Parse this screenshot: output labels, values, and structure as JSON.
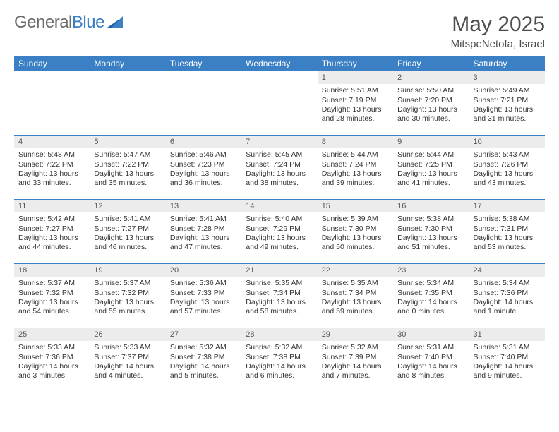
{
  "logo": {
    "part1": "General",
    "part2": "Blue"
  },
  "title": {
    "month": "May 2025",
    "location": "MitspeNetofa, Israel"
  },
  "colors": {
    "header_bg": "#3b7fc4",
    "header_text": "#ffffff",
    "daynum_bg": "#ececec",
    "row_border": "#3b7fc4",
    "body_text": "#333333"
  },
  "dow": [
    "Sunday",
    "Monday",
    "Tuesday",
    "Wednesday",
    "Thursday",
    "Friday",
    "Saturday"
  ],
  "weeks": [
    [
      {
        "n": "",
        "sr": "",
        "ss": "",
        "dl": ""
      },
      {
        "n": "",
        "sr": "",
        "ss": "",
        "dl": ""
      },
      {
        "n": "",
        "sr": "",
        "ss": "",
        "dl": ""
      },
      {
        "n": "",
        "sr": "",
        "ss": "",
        "dl": ""
      },
      {
        "n": "1",
        "sr": "Sunrise: 5:51 AM",
        "ss": "Sunset: 7:19 PM",
        "dl": "Daylight: 13 hours and 28 minutes."
      },
      {
        "n": "2",
        "sr": "Sunrise: 5:50 AM",
        "ss": "Sunset: 7:20 PM",
        "dl": "Daylight: 13 hours and 30 minutes."
      },
      {
        "n": "3",
        "sr": "Sunrise: 5:49 AM",
        "ss": "Sunset: 7:21 PM",
        "dl": "Daylight: 13 hours and 31 minutes."
      }
    ],
    [
      {
        "n": "4",
        "sr": "Sunrise: 5:48 AM",
        "ss": "Sunset: 7:22 PM",
        "dl": "Daylight: 13 hours and 33 minutes."
      },
      {
        "n": "5",
        "sr": "Sunrise: 5:47 AM",
        "ss": "Sunset: 7:22 PM",
        "dl": "Daylight: 13 hours and 35 minutes."
      },
      {
        "n": "6",
        "sr": "Sunrise: 5:46 AM",
        "ss": "Sunset: 7:23 PM",
        "dl": "Daylight: 13 hours and 36 minutes."
      },
      {
        "n": "7",
        "sr": "Sunrise: 5:45 AM",
        "ss": "Sunset: 7:24 PM",
        "dl": "Daylight: 13 hours and 38 minutes."
      },
      {
        "n": "8",
        "sr": "Sunrise: 5:44 AM",
        "ss": "Sunset: 7:24 PM",
        "dl": "Daylight: 13 hours and 39 minutes."
      },
      {
        "n": "9",
        "sr": "Sunrise: 5:44 AM",
        "ss": "Sunset: 7:25 PM",
        "dl": "Daylight: 13 hours and 41 minutes."
      },
      {
        "n": "10",
        "sr": "Sunrise: 5:43 AM",
        "ss": "Sunset: 7:26 PM",
        "dl": "Daylight: 13 hours and 43 minutes."
      }
    ],
    [
      {
        "n": "11",
        "sr": "Sunrise: 5:42 AM",
        "ss": "Sunset: 7:27 PM",
        "dl": "Daylight: 13 hours and 44 minutes."
      },
      {
        "n": "12",
        "sr": "Sunrise: 5:41 AM",
        "ss": "Sunset: 7:27 PM",
        "dl": "Daylight: 13 hours and 46 minutes."
      },
      {
        "n": "13",
        "sr": "Sunrise: 5:41 AM",
        "ss": "Sunset: 7:28 PM",
        "dl": "Daylight: 13 hours and 47 minutes."
      },
      {
        "n": "14",
        "sr": "Sunrise: 5:40 AM",
        "ss": "Sunset: 7:29 PM",
        "dl": "Daylight: 13 hours and 49 minutes."
      },
      {
        "n": "15",
        "sr": "Sunrise: 5:39 AM",
        "ss": "Sunset: 7:30 PM",
        "dl": "Daylight: 13 hours and 50 minutes."
      },
      {
        "n": "16",
        "sr": "Sunrise: 5:38 AM",
        "ss": "Sunset: 7:30 PM",
        "dl": "Daylight: 13 hours and 51 minutes."
      },
      {
        "n": "17",
        "sr": "Sunrise: 5:38 AM",
        "ss": "Sunset: 7:31 PM",
        "dl": "Daylight: 13 hours and 53 minutes."
      }
    ],
    [
      {
        "n": "18",
        "sr": "Sunrise: 5:37 AM",
        "ss": "Sunset: 7:32 PM",
        "dl": "Daylight: 13 hours and 54 minutes."
      },
      {
        "n": "19",
        "sr": "Sunrise: 5:37 AM",
        "ss": "Sunset: 7:32 PM",
        "dl": "Daylight: 13 hours and 55 minutes."
      },
      {
        "n": "20",
        "sr": "Sunrise: 5:36 AM",
        "ss": "Sunset: 7:33 PM",
        "dl": "Daylight: 13 hours and 57 minutes."
      },
      {
        "n": "21",
        "sr": "Sunrise: 5:35 AM",
        "ss": "Sunset: 7:34 PM",
        "dl": "Daylight: 13 hours and 58 minutes."
      },
      {
        "n": "22",
        "sr": "Sunrise: 5:35 AM",
        "ss": "Sunset: 7:34 PM",
        "dl": "Daylight: 13 hours and 59 minutes."
      },
      {
        "n": "23",
        "sr": "Sunrise: 5:34 AM",
        "ss": "Sunset: 7:35 PM",
        "dl": "Daylight: 14 hours and 0 minutes."
      },
      {
        "n": "24",
        "sr": "Sunrise: 5:34 AM",
        "ss": "Sunset: 7:36 PM",
        "dl": "Daylight: 14 hours and 1 minute."
      }
    ],
    [
      {
        "n": "25",
        "sr": "Sunrise: 5:33 AM",
        "ss": "Sunset: 7:36 PM",
        "dl": "Daylight: 14 hours and 3 minutes."
      },
      {
        "n": "26",
        "sr": "Sunrise: 5:33 AM",
        "ss": "Sunset: 7:37 PM",
        "dl": "Daylight: 14 hours and 4 minutes."
      },
      {
        "n": "27",
        "sr": "Sunrise: 5:32 AM",
        "ss": "Sunset: 7:38 PM",
        "dl": "Daylight: 14 hours and 5 minutes."
      },
      {
        "n": "28",
        "sr": "Sunrise: 5:32 AM",
        "ss": "Sunset: 7:38 PM",
        "dl": "Daylight: 14 hours and 6 minutes."
      },
      {
        "n": "29",
        "sr": "Sunrise: 5:32 AM",
        "ss": "Sunset: 7:39 PM",
        "dl": "Daylight: 14 hours and 7 minutes."
      },
      {
        "n": "30",
        "sr": "Sunrise: 5:31 AM",
        "ss": "Sunset: 7:40 PM",
        "dl": "Daylight: 14 hours and 8 minutes."
      },
      {
        "n": "31",
        "sr": "Sunrise: 5:31 AM",
        "ss": "Sunset: 7:40 PM",
        "dl": "Daylight: 14 hours and 9 minutes."
      }
    ]
  ]
}
